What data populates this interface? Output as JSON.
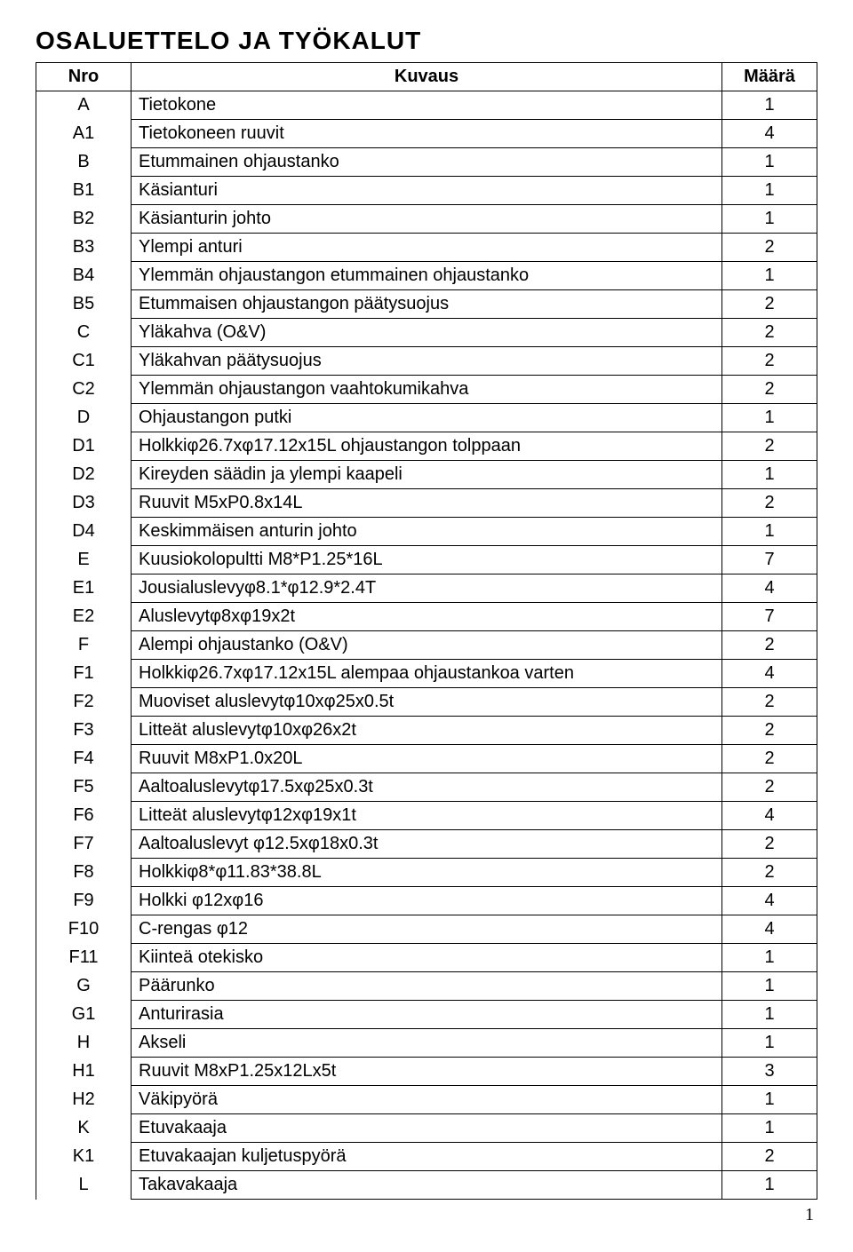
{
  "title": "OSALUETTELO JA TYÖKALUT",
  "headers": {
    "nro": "Nro",
    "kuvaus": "Kuvaus",
    "maara": "Määrä"
  },
  "rows": [
    {
      "nro": "A",
      "kuvaus": "Tietokone",
      "maara": "1"
    },
    {
      "nro": "A1",
      "kuvaus": "Tietokoneen ruuvit",
      "maara": "4"
    },
    {
      "nro": "B",
      "kuvaus": "Etummainen ohjaustanko",
      "maara": "1"
    },
    {
      "nro": "B1",
      "kuvaus": "Käsianturi",
      "maara": "1"
    },
    {
      "nro": "B2",
      "kuvaus": "Käsianturin johto",
      "maara": "1"
    },
    {
      "nro": "B3",
      "kuvaus": "Ylempi anturi",
      "maara": "2"
    },
    {
      "nro": "B4",
      "kuvaus": "Ylemmän ohjaustangon etummainen ohjaustanko",
      "maara": "1"
    },
    {
      "nro": "B5",
      "kuvaus": "Etummaisen ohjaustangon päätysuojus",
      "maara": "2"
    },
    {
      "nro": "C",
      "kuvaus": "Yläkahva (O&V)",
      "maara": "2"
    },
    {
      "nro": "C1",
      "kuvaus": "Yläkahvan päätysuojus",
      "maara": "2"
    },
    {
      "nro": "C2",
      "kuvaus": "Ylemmän ohjaustangon vaahtokumikahva",
      "maara": "2"
    },
    {
      "nro": "D",
      "kuvaus": "Ohjaustangon putki",
      "maara": "1"
    },
    {
      "nro": "D1",
      "kuvaus": "Holkkiφ26.7xφ17.12x15L ohjaustangon tolppaan",
      "maara": "2"
    },
    {
      "nro": "D2",
      "kuvaus": "Kireyden säädin ja ylempi kaapeli",
      "maara": "1"
    },
    {
      "nro": "D3",
      "kuvaus": "Ruuvit M5xP0.8x14L",
      "maara": "2"
    },
    {
      "nro": "D4",
      "kuvaus": "Keskimmäisen anturin johto",
      "maara": "1"
    },
    {
      "nro": "E",
      "kuvaus": "Kuusiokolopultti M8*P1.25*16L",
      "maara": "7"
    },
    {
      "nro": "E1",
      "kuvaus": "Jousialuslevyφ8.1*φ12.9*2.4T",
      "maara": "4"
    },
    {
      "nro": "E2",
      "kuvaus": "Aluslevytφ8xφ19x2t",
      "maara": "7"
    },
    {
      "nro": "F",
      "kuvaus": "Alempi ohjaustanko (O&V)",
      "maara": "2"
    },
    {
      "nro": "F1",
      "kuvaus": "Holkkiφ26.7xφ17.12x15L alempaa ohjaustankoa varten",
      "maara": "4"
    },
    {
      "nro": "F2",
      "kuvaus": "Muoviset aluslevytφ10xφ25x0.5t",
      "maara": "2"
    },
    {
      "nro": "F3",
      "kuvaus": "Litteät aluslevytφ10xφ26x2t",
      "maara": "2"
    },
    {
      "nro": "F4",
      "kuvaus": "Ruuvit M8xP1.0x20L",
      "maara": "2"
    },
    {
      "nro": "F5",
      "kuvaus": "Aaltoaluslevytφ17.5xφ25x0.3t",
      "maara": "2"
    },
    {
      "nro": "F6",
      "kuvaus": "Litteät aluslevytφ12xφ19x1t",
      "maara": "4"
    },
    {
      "nro": "F7",
      "kuvaus": "Aaltoaluslevyt φ12.5xφ18x0.3t",
      "maara": "2"
    },
    {
      "nro": "F8",
      "kuvaus": "Holkkiφ8*φ11.83*38.8L",
      "maara": "2"
    },
    {
      "nro": "F9",
      "kuvaus": "Holkki φ12xφ16",
      "maara": "4"
    },
    {
      "nro": "F10",
      "kuvaus": "C-rengas φ12",
      "maara": "4"
    },
    {
      "nro": "F11",
      "kuvaus": "Kiinteä otekisko",
      "maara": "1"
    },
    {
      "nro": "G",
      "kuvaus": "Päärunko",
      "maara": "1"
    },
    {
      "nro": "G1",
      "kuvaus": "Anturirasia",
      "maara": "1"
    },
    {
      "nro": "H",
      "kuvaus": "Akseli",
      "maara": "1"
    },
    {
      "nro": "H1",
      "kuvaus": "Ruuvit M8xP1.25x12Lx5t",
      "maara": "3"
    },
    {
      "nro": "H2",
      "kuvaus": "Väkipyörä",
      "maara": "1"
    },
    {
      "nro": "K",
      "kuvaus": "Etuvakaaja",
      "maara": "1"
    },
    {
      "nro": "K1",
      "kuvaus": "Etuvakaajan kuljetuspyörä",
      "maara": "2"
    },
    {
      "nro": "L",
      "kuvaus": "Takavakaaja",
      "maara": "1"
    }
  ],
  "page_number": "1",
  "style": {
    "title_fontsize": 28,
    "cell_fontsize": 20,
    "border_color": "#000000",
    "background_color": "#ffffff",
    "text_color": "#000000",
    "col_widths": {
      "nro": 90,
      "maara": 90
    }
  }
}
